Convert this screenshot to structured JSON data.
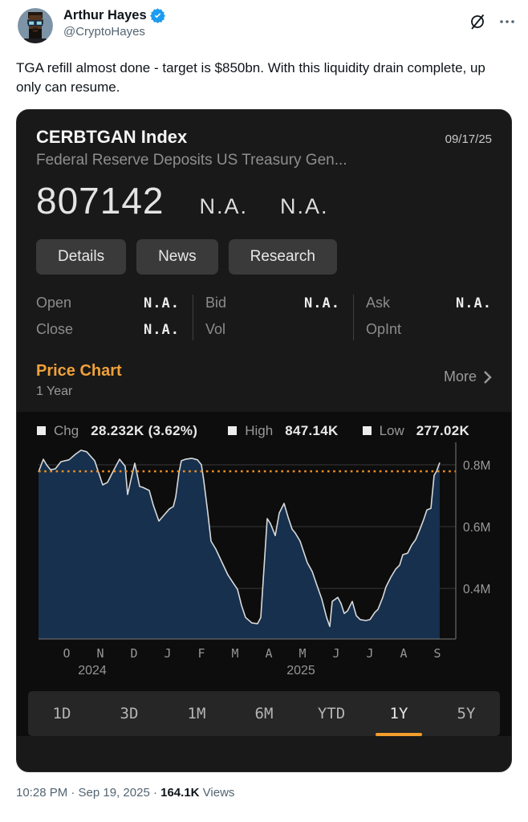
{
  "tweet": {
    "author": "Arthur Hayes",
    "handle": "@CryptoHayes",
    "text": "TGA refill almost done - target is $850bn. With this liquidity drain complete, up only can resume.",
    "timestamp": "10:28 PM · Sep 19, 2025 · ",
    "views_count": "164.1K",
    "views_label": " Views"
  },
  "card": {
    "ticker": "CERBTGAN Index",
    "date": "09/17/25",
    "subtitle": "Federal Reserve Deposits US Treasury Gen...",
    "price": "807142",
    "price_na_1": "N.A.",
    "price_na_2": "N.A.",
    "buttons": [
      "Details",
      "News",
      "Research"
    ],
    "stats_columns": [
      [
        {
          "label": "Open",
          "value": "N.A."
        },
        {
          "label": "Close",
          "value": "N.A."
        }
      ],
      [
        {
          "label": "Bid",
          "value": "N.A."
        },
        {
          "label": "Vol",
          "value": ""
        }
      ],
      [
        {
          "label": "Ask",
          "value": "N.A."
        },
        {
          "label": "OpInt",
          "value": ""
        }
      ]
    ],
    "section_title": "Price Chart",
    "section_range": "1 Year",
    "more_label": "More",
    "ranges": [
      "1D",
      "3D",
      "1M",
      "6M",
      "YTD",
      "1Y",
      "5Y"
    ],
    "active_range": "1Y"
  },
  "chart_data": {
    "type": "area",
    "title": "CERBTGAN Index 1 Year price chart",
    "legend": [
      {
        "label": "Chg",
        "value": "28.232K (3.62%)"
      },
      {
        "label": "High",
        "value": "847.14K"
      },
      {
        "label": "Low",
        "value": "277.02K"
      }
    ],
    "unit": "thousands (K)",
    "last_value": 807.1,
    "reference_line_value": 778.9,
    "high": 847.14,
    "low": 277.02,
    "ylim": [
      230,
      880
    ],
    "y_ticks": [
      {
        "label": "0.8M",
        "value": 800
      },
      {
        "label": "0.6M",
        "value": 600
      },
      {
        "label": "0.4M",
        "value": 400
      }
    ],
    "x_ticks": [
      "O",
      "N",
      "D",
      "J",
      "F",
      "M",
      "A",
      "M",
      "J",
      "J",
      "A",
      "S"
    ],
    "x_years": [
      "2024",
      "2025"
    ],
    "points": [
      [
        0.0,
        777
      ],
      [
        0.012,
        818
      ],
      [
        0.02,
        800
      ],
      [
        0.03,
        784
      ],
      [
        0.042,
        787
      ],
      [
        0.056,
        810
      ],
      [
        0.076,
        816
      ],
      [
        0.092,
        834
      ],
      [
        0.106,
        847
      ],
      [
        0.12,
        842
      ],
      [
        0.14,
        813
      ],
      [
        0.16,
        735
      ],
      [
        0.172,
        743
      ],
      [
        0.186,
        779
      ],
      [
        0.202,
        818
      ],
      [
        0.216,
        795
      ],
      [
        0.222,
        704
      ],
      [
        0.232,
        761
      ],
      [
        0.24,
        805
      ],
      [
        0.252,
        730
      ],
      [
        0.26,
        727
      ],
      [
        0.276,
        717
      ],
      [
        0.286,
        670
      ],
      [
        0.3,
        618
      ],
      [
        0.312,
        636
      ],
      [
        0.326,
        657
      ],
      [
        0.336,
        665
      ],
      [
        0.342,
        696
      ],
      [
        0.35,
        774
      ],
      [
        0.356,
        813
      ],
      [
        0.366,
        818
      ],
      [
        0.382,
        821
      ],
      [
        0.396,
        816
      ],
      [
        0.406,
        800
      ],
      [
        0.412,
        748
      ],
      [
        0.422,
        644
      ],
      [
        0.43,
        553
      ],
      [
        0.442,
        527
      ],
      [
        0.456,
        488
      ],
      [
        0.472,
        444
      ],
      [
        0.486,
        416
      ],
      [
        0.496,
        397
      ],
      [
        0.506,
        345
      ],
      [
        0.516,
        306
      ],
      [
        0.532,
        288
      ],
      [
        0.546,
        286
      ],
      [
        0.554,
        306
      ],
      [
        0.57,
        626
      ],
      [
        0.578,
        610
      ],
      [
        0.59,
        571
      ],
      [
        0.6,
        644
      ],
      [
        0.612,
        675
      ],
      [
        0.622,
        631
      ],
      [
        0.632,
        592
      ],
      [
        0.64,
        579
      ],
      [
        0.652,
        553
      ],
      [
        0.662,
        514
      ],
      [
        0.67,
        483
      ],
      [
        0.682,
        455
      ],
      [
        0.694,
        410
      ],
      [
        0.706,
        366
      ],
      [
        0.718,
        306
      ],
      [
        0.726,
        277
      ],
      [
        0.732,
        358
      ],
      [
        0.746,
        371
      ],
      [
        0.754,
        351
      ],
      [
        0.762,
        319
      ],
      [
        0.77,
        327
      ],
      [
        0.782,
        358
      ],
      [
        0.792,
        312
      ],
      [
        0.802,
        299
      ],
      [
        0.816,
        296
      ],
      [
        0.826,
        299
      ],
      [
        0.838,
        322
      ],
      [
        0.846,
        332
      ],
      [
        0.858,
        371
      ],
      [
        0.866,
        405
      ],
      [
        0.878,
        436
      ],
      [
        0.89,
        462
      ],
      [
        0.9,
        475
      ],
      [
        0.908,
        509
      ],
      [
        0.92,
        514
      ],
      [
        0.93,
        540
      ],
      [
        0.94,
        558
      ],
      [
        0.95,
        589
      ],
      [
        0.96,
        623
      ],
      [
        0.968,
        654
      ],
      [
        0.978,
        659
      ],
      [
        0.986,
        766
      ],
      [
        0.992,
        779
      ],
      [
        1.0,
        807
      ]
    ]
  },
  "colors": {
    "accent_orange": "#f0a13a",
    "underline_orange": "#f59e2d",
    "dotted_line": "#ef8e1f",
    "area_fill": "#16304e",
    "line": "#d9d9d9",
    "grid": "#383838",
    "axis": "#7a7a7a",
    "verified_blue": "#1d9bf0"
  },
  "icons": {
    "grok": "grok-icon",
    "more_menu": "more-menu-icon",
    "verified": "verified-badge-icon",
    "chevron": "chevron-right-icon"
  }
}
